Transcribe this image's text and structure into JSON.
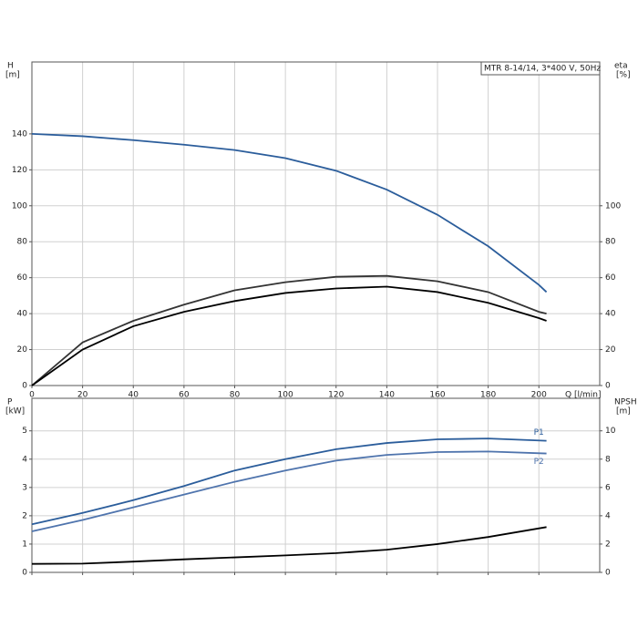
{
  "chart_data": [
    {
      "type": "line",
      "legend_text": "MTR 8-14/14, 3*400 V, 50Hz",
      "ylabel": "H",
      "yunit": "[m]",
      "y2label": "eta",
      "y2unit": "[%]",
      "xlabel": "Q [l/min]",
      "x": [
        0,
        20,
        40,
        60,
        80,
        100,
        120,
        140,
        160,
        180,
        200,
        203
      ],
      "xlim": [
        0,
        224
      ],
      "xticks": [
        0,
        20,
        40,
        60,
        80,
        100,
        120,
        140,
        160,
        180,
        200
      ],
      "ylim": [
        0,
        180
      ],
      "yticks": [
        0,
        20,
        40,
        60,
        80,
        100,
        120,
        140
      ],
      "y2lim": [
        0,
        180
      ],
      "y2ticks": [
        0,
        20,
        40,
        60,
        80,
        100
      ],
      "grid": true,
      "series": [
        {
          "color": "#2b5d9b",
          "values": [
            140,
            138.7,
            136.5,
            134,
            131,
            126.5,
            119.5,
            109,
            95,
            77.5,
            56,
            52
          ]
        },
        {
          "color": "#333333",
          "axis": "y2",
          "values": [
            0,
            24,
            36,
            45,
            53,
            57.5,
            60.5,
            61,
            58,
            52,
            41,
            40
          ]
        },
        {
          "color": "#000000",
          "axis": "y2",
          "values": [
            0,
            20,
            33,
            41,
            47,
            51.5,
            54,
            55,
            52,
            46,
            37.5,
            36
          ]
        }
      ]
    },
    {
      "type": "line",
      "ylabel": "P",
      "yunit": "[kW]",
      "y2label": "NPSH",
      "y2unit": "[m]",
      "x": [
        0,
        20,
        40,
        60,
        80,
        100,
        120,
        140,
        160,
        180,
        203
      ],
      "xlim": [
        0,
        224
      ],
      "xticks": [
        0,
        20,
        40,
        60,
        80,
        100,
        120,
        140,
        160,
        180,
        200
      ],
      "show_xtick_labels": false,
      "ylim": [
        0,
        6.15
      ],
      "yticks": [
        0,
        1,
        2,
        3,
        4,
        5
      ],
      "y2lim": [
        0,
        12.3
      ],
      "y2ticks": [
        0,
        2,
        4,
        6,
        8,
        10
      ],
      "grid": true,
      "series": [
        {
          "name": "P1",
          "color": "#2b5d9b",
          "values": [
            1.7,
            2.1,
            2.55,
            3.05,
            3.6,
            4.0,
            4.35,
            4.57,
            4.7,
            4.73,
            4.65
          ]
        },
        {
          "name": "P2",
          "color": "#4f74ad",
          "values": [
            1.45,
            1.85,
            2.3,
            2.75,
            3.2,
            3.6,
            3.95,
            4.15,
            4.25,
            4.27,
            4.2
          ]
        },
        {
          "color": "#000000",
          "axis": "y2",
          "values": [
            0.6,
            0.62,
            0.76,
            0.92,
            1.06,
            1.2,
            1.36,
            1.6,
            2.0,
            2.5,
            3.2
          ]
        }
      ]
    }
  ]
}
